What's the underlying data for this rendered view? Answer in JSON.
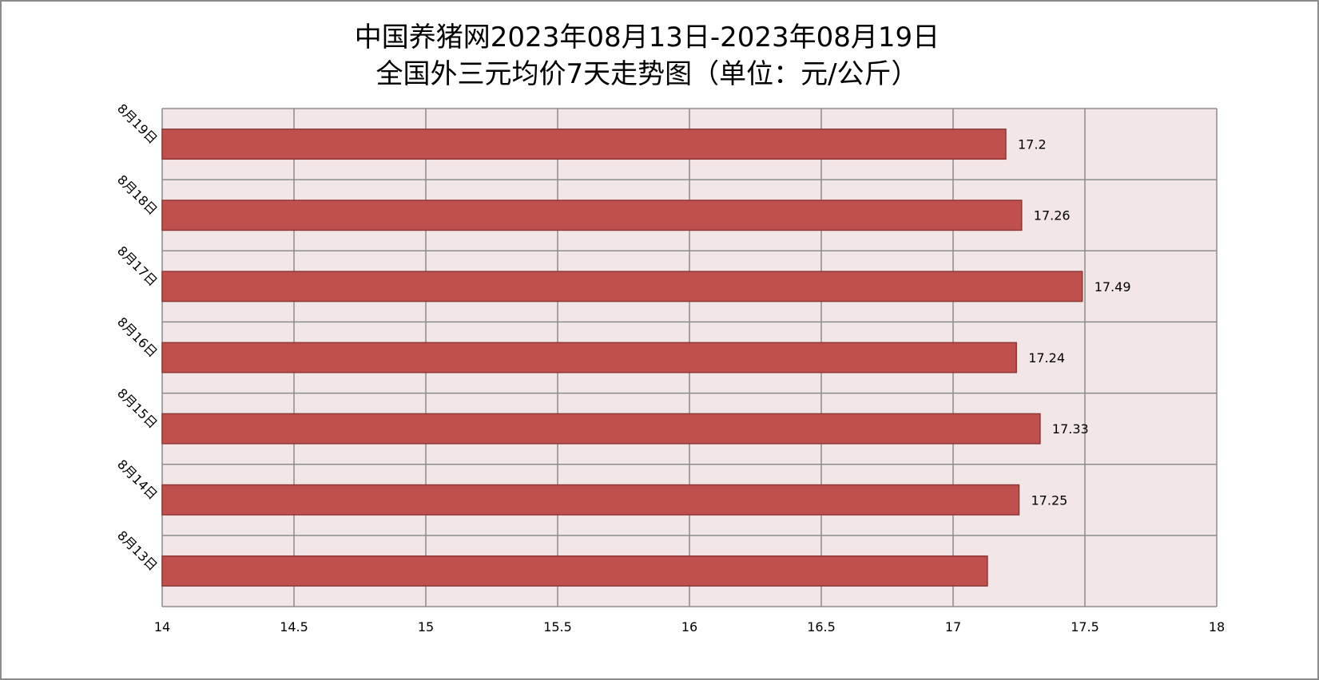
{
  "colors": {
    "plot_background": "#f2e6e6",
    "bar_fill": "#c0504d",
    "bar_stroke": "#8c3836",
    "grid": "#8c8c8c",
    "frame": "#8c8c8c"
  },
  "chart_data": {
    "type": "bar",
    "orientation": "horizontal",
    "title_lines": [
      "中国养猪网2023年08月13日-2023年08月19日",
      "全国外三元均价7天走势图（单位：元/公斤）"
    ],
    "categories": [
      "8月13日",
      "8月14日",
      "8月15日",
      "8月16日",
      "8月17日",
      "8月18日",
      "8月19日"
    ],
    "values": [
      17.13,
      17.25,
      17.33,
      17.24,
      17.49,
      17.26,
      17.2
    ],
    "data_labels": [
      "",
      "17.25",
      "17.33",
      "17.24",
      "17.49",
      "17.26",
      "17.2"
    ],
    "xlim": [
      14,
      18
    ],
    "x_ticks": [
      "14",
      "14.5",
      "15",
      "15.5",
      "16",
      "16.5",
      "17",
      "17.5",
      "18"
    ],
    "grid": true,
    "legend": "none"
  }
}
